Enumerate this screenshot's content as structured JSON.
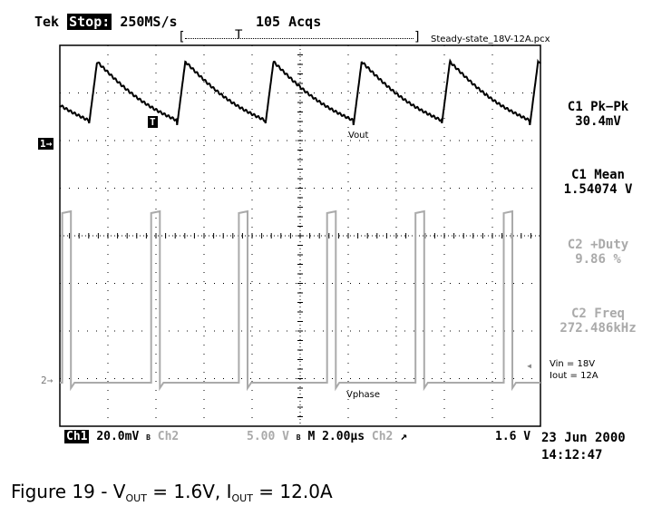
{
  "header": {
    "brand": "Tek",
    "run_state": "Stop:",
    "sample_rate": "250MS/s",
    "acquisitions": "105 Acqs",
    "trigger_marker": "T",
    "filename": "Steady-state_18V-12A.pcx"
  },
  "channel_markers": {
    "ch1": "1→",
    "ch2": "2→",
    "trigger": "T"
  },
  "trace_labels": {
    "vout": "Vout",
    "vphase": "Vphase"
  },
  "measurements": [
    {
      "label": "C1 Pk−Pk",
      "value": "30.4mV",
      "color": "#000000"
    },
    {
      "label": "C1 Mean",
      "value": "1.54074 V",
      "color": "#000000"
    },
    {
      "label": "C2 +Duty",
      "value": "9.86 %",
      "color": "#aaaaaa"
    },
    {
      "label": "C2 Freq",
      "value": "272.486kHz",
      "color": "#aaaaaa"
    }
  ],
  "conditions": {
    "vin": "Vin = 18V",
    "iout": "Iout = 12A"
  },
  "status_bar": {
    "ch1_name": "Ch1",
    "ch1_scale": "20.0mV",
    "bw1": "B",
    "ch2_name": "Ch2",
    "ch2_scale": "5.00 V",
    "bw2": "B",
    "timebase": "M 2.00µs",
    "trig_source": "Ch2",
    "trig_slope": "↗",
    "trig_level": "1.6 V"
  },
  "datetime": {
    "date": "23 Jun 2000",
    "time": "14:12:47"
  },
  "caption": {
    "prefix": "Figure 19 - V",
    "vsub": "OUT",
    "mid": " = 1.6V, I",
    "isub": "OUT",
    "suffix": " = 12.0A"
  },
  "chart_data": {
    "type": "line",
    "x_unit": "µs",
    "x_per_div": 2.0,
    "xlim": [
      -10,
      10
    ],
    "period_us": 3.67,
    "series": [
      {
        "name": "Vout",
        "scale_per_div": "20.0mV",
        "pk_pk_mV": 30.4,
        "mean_V": 1.54074,
        "shape": "sawtooth",
        "rise_edges_us": [
          -8.8,
          -5.13,
          -1.46,
          2.21,
          5.88,
          9.55
        ]
      },
      {
        "name": "Vphase",
        "scale_per_div": "5.00 V",
        "high_V": 18,
        "low_V": 0,
        "duty_percent": 9.86,
        "freq_kHz": 272.486,
        "shape": "pulse",
        "pulse_starts_us": [
          -9.9,
          -6.2,
          -2.55,
          1.12,
          4.8,
          8.47
        ]
      }
    ],
    "grid": true,
    "grid_divisions": [
      10,
      8
    ]
  }
}
